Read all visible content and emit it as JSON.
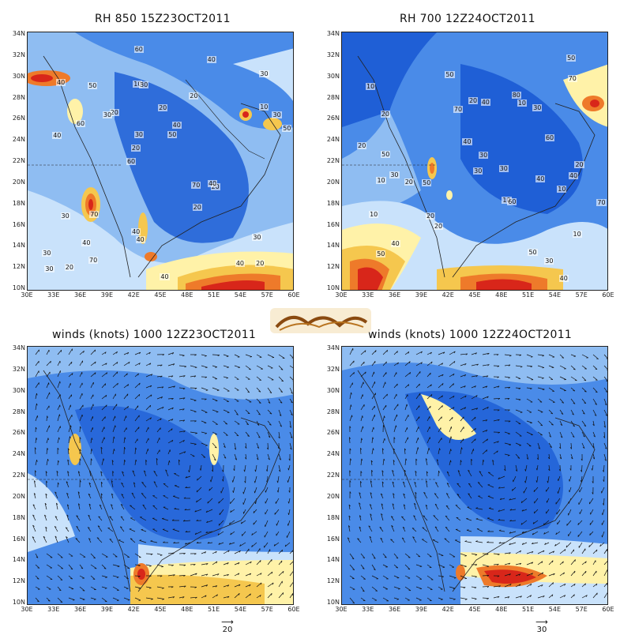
{
  "panels": [
    {
      "id": "rh850",
      "title": "RH 850 15Z23OCT2011"
    },
    {
      "id": "rh700",
      "title": "RH 700 12Z24OCT2011"
    },
    {
      "id": "winds23",
      "title": "winds (knots) 1000 12Z23OCT2011",
      "ref_value": "20"
    },
    {
      "id": "winds24",
      "title": "winds (knots) 1000 12Z24OCT2011",
      "ref_value": "30"
    }
  ],
  "lat_labels": [
    "34N",
    "32N",
    "30N",
    "28N",
    "26N",
    "24N",
    "22N",
    "20N",
    "18N",
    "16N",
    "14N",
    "12N",
    "10N"
  ],
  "lon_labels": [
    "30E",
    "33E",
    "36E",
    "39E",
    "42E",
    "45E",
    "48E",
    "51E",
    "54E",
    "57E",
    "60E"
  ],
  "contour_labels_rh850": [
    "20",
    "40",
    "30",
    "60",
    "20",
    "20",
    "10",
    "20",
    "30",
    "20",
    "30",
    "40",
    "30",
    "40",
    "20",
    "40",
    "60",
    "50",
    "70",
    "10",
    "20",
    "40",
    "30",
    "50",
    "40",
    "70",
    "40",
    "30",
    "40",
    "40",
    "30",
    "60",
    "20",
    "70",
    "30",
    "50",
    "30",
    "40"
  ],
  "contour_labels_rh700": [
    "40",
    "30",
    "10",
    "10",
    "10",
    "20",
    "40",
    "50",
    "30",
    "20",
    "10",
    "30",
    "20",
    "50",
    "30",
    "10",
    "40",
    "30",
    "20",
    "50",
    "50",
    "40",
    "60",
    "70",
    "20",
    "50",
    "20",
    "30",
    "40",
    "70",
    "60",
    "10",
    "20",
    "80",
    "70",
    "10",
    "40",
    "50"
  ],
  "logo_text": "بارح الغبشة",
  "colors": {
    "deep_blue": "#1f5fd6",
    "mid_blue": "#4a8be8",
    "light_blue": "#8fbdf2",
    "pale_blue": "#c9e2fb",
    "pale_yellow": "#fff2a8",
    "yellow": "#f5c74e",
    "orange": "#ee7a2a",
    "red": "#d8261a"
  }
}
